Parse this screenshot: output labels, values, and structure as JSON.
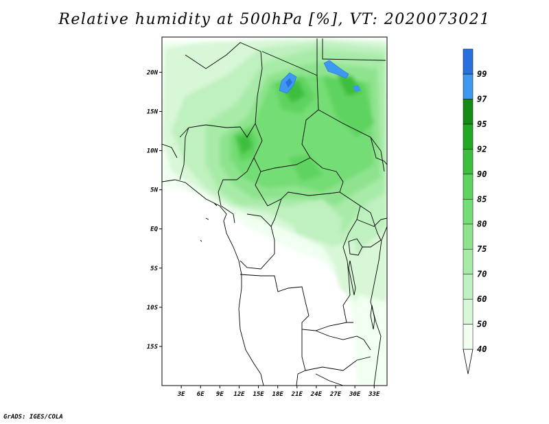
{
  "title": "Relative humidity at 500hPa [%], VT: 2020073021",
  "credit": "GrADS: IGES/COLA",
  "axes": {
    "lat_ticks": [
      {
        "value": 20,
        "label": "20N"
      },
      {
        "value": 15,
        "label": "15N"
      },
      {
        "value": 10,
        "label": "10N"
      },
      {
        "value": 5,
        "label": "5N"
      },
      {
        "value": 0,
        "label": "EQ"
      },
      {
        "value": -5,
        "label": "5S"
      },
      {
        "value": -10,
        "label": "10S"
      },
      {
        "value": -15,
        "label": "15S"
      }
    ],
    "lon_ticks": [
      {
        "value": 3,
        "label": "3E"
      },
      {
        "value": 6,
        "label": "6E"
      },
      {
        "value": 9,
        "label": "9E"
      },
      {
        "value": 12,
        "label": "12E"
      },
      {
        "value": 15,
        "label": "15E"
      },
      {
        "value": 18,
        "label": "18E"
      },
      {
        "value": 21,
        "label": "21E"
      },
      {
        "value": 24,
        "label": "24E"
      },
      {
        "value": 27,
        "label": "27E"
      },
      {
        "value": 30,
        "label": "30E"
      },
      {
        "value": 33,
        "label": "33E"
      }
    ],
    "lat_range": [
      -20,
      24.5
    ],
    "lon_range": [
      0,
      35
    ]
  },
  "colorbar": {
    "levels": [
      "40",
      "50",
      "60",
      "70",
      "75",
      "80",
      "85",
      "90",
      "92",
      "95",
      "97",
      "99"
    ],
    "colors": [
      "#f0fff0",
      "#d7f7d7",
      "#bff0bf",
      "#a8eba8",
      "#8fe38f",
      "#75dd75",
      "#5fd35f",
      "#3cbf3c",
      "#22a822",
      "#148c14",
      "#3f98ef",
      "#2870e0",
      "#1858c8"
    ]
  }
}
